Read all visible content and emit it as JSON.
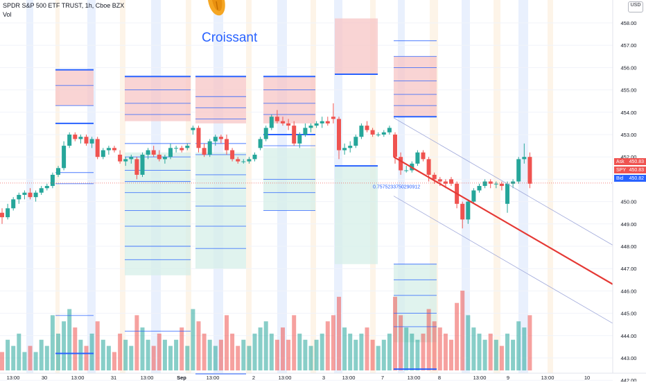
{
  "header": {
    "symbol_line": "SPDR S&P 500 ETF TRUST, 1h, Cboe BZX",
    "volume_label": "Vol",
    "currency_badge": "USD"
  },
  "watermark_text": "Croissant",
  "price_tags": [
    {
      "label": "Ask",
      "value": "450.83",
      "color": "#ef5350"
    },
    {
      "label": "SPY",
      "value": "450.83",
      "color": "#ef5350"
    },
    {
      "label": "Bid",
      "value": "450.82",
      "color": "#2962ff"
    }
  ],
  "annotation_value": "0.7575233750290912",
  "colors": {
    "up": "#26a69a",
    "down": "#ef5350",
    "level_line": "#2962ff",
    "trend_line": "#e53935",
    "grid": "#f0f3fa",
    "session_blue": "#e3ecfd",
    "session_orange": "#fdf1e2"
  },
  "chart_data": {
    "type": "candlestick",
    "title": "SPDR S&P 500 ETF TRUST, 1h, Cboe BZX",
    "y_axis": {
      "ticks": [
        "442.00",
        "443.00",
        "444.00",
        "445.00",
        "446.00",
        "447.00",
        "448.00",
        "449.00",
        "450.00",
        "451.00",
        "452.00",
        "453.00",
        "454.00",
        "455.00",
        "456.00",
        "457.00",
        "458.00"
      ],
      "range": [
        441.3,
        459.2
      ]
    },
    "x_axis": {
      "ticks": [
        "13:00",
        "30",
        "13:00",
        "31",
        "13:00",
        "Sep",
        "13:00",
        "2",
        "13:00",
        "3",
        "13:00",
        "7",
        "13:00",
        "8",
        "13:00",
        "9",
        "13:00",
        "10"
      ]
    },
    "series": [
      {
        "name": "SPY",
        "ohlc": [
          [
            449.5,
            449.7,
            449.0,
            449.3
          ],
          [
            449.3,
            449.9,
            449.2,
            449.7
          ],
          [
            449.7,
            450.2,
            449.6,
            450.1
          ],
          [
            450.1,
            450.4,
            449.9,
            450.3
          ],
          [
            450.3,
            450.5,
            450.1,
            450.4
          ],
          [
            450.4,
            450.6,
            450.1,
            450.2
          ],
          [
            450.2,
            450.5,
            450.0,
            450.4
          ],
          [
            450.4,
            450.7,
            450.3,
            450.6
          ],
          [
            450.6,
            450.8,
            450.5,
            450.7
          ],
          [
            450.7,
            451.3,
            450.6,
            451.2
          ],
          [
            451.2,
            451.6,
            451.1,
            451.5
          ],
          [
            451.5,
            452.7,
            451.4,
            452.5
          ],
          [
            452.5,
            453.1,
            452.4,
            453.0
          ],
          [
            453.0,
            453.1,
            452.7,
            452.8
          ],
          [
            452.8,
            453.0,
            452.6,
            452.9
          ],
          [
            452.9,
            453.0,
            452.5,
            452.6
          ],
          [
            452.6,
            452.9,
            452.4,
            452.8
          ],
          [
            452.8,
            452.9,
            451.9,
            452.0
          ],
          [
            452.0,
            452.4,
            451.9,
            452.3
          ],
          [
            452.3,
            452.5,
            452.1,
            452.4
          ],
          [
            452.4,
            452.5,
            452.2,
            452.3
          ],
          [
            452.1,
            452.3,
            451.7,
            451.8
          ],
          [
            451.8,
            452.0,
            451.6,
            451.9
          ],
          [
            451.9,
            452.1,
            451.7,
            452.0
          ],
          [
            451.9,
            452.0,
            451.0,
            451.2
          ],
          [
            451.2,
            452.2,
            451.1,
            452.1
          ],
          [
            452.1,
            452.4,
            451.9,
            452.3
          ],
          [
            452.3,
            452.5,
            452.0,
            452.1
          ],
          [
            452.1,
            452.3,
            451.8,
            451.9
          ],
          [
            451.9,
            452.1,
            451.7,
            452.0
          ],
          [
            452.0,
            452.6,
            451.9,
            452.4
          ],
          [
            452.4,
            452.5,
            452.2,
            452.4
          ],
          [
            452.4,
            452.5,
            452.2,
            452.3
          ],
          [
            452.4,
            452.6,
            452.3,
            452.5
          ],
          [
            453.2,
            453.4,
            453.0,
            453.3
          ],
          [
            453.3,
            453.4,
            452.2,
            452.4
          ],
          [
            452.4,
            452.6,
            452.0,
            452.1
          ],
          [
            452.1,
            452.8,
            452.0,
            452.7
          ],
          [
            452.7,
            453.0,
            452.5,
            452.9
          ],
          [
            452.9,
            453.0,
            452.6,
            452.8
          ],
          [
            452.8,
            453.0,
            452.1,
            452.3
          ],
          [
            452.3,
            452.4,
            451.8,
            451.9
          ],
          [
            451.9,
            452.0,
            451.7,
            451.8
          ],
          [
            451.8,
            451.9,
            451.7,
            451.8
          ],
          [
            451.8,
            452.0,
            451.7,
            451.9
          ],
          [
            451.9,
            452.2,
            451.8,
            452.1
          ],
          [
            452.4,
            452.9,
            452.3,
            452.8
          ],
          [
            452.8,
            453.4,
            452.7,
            453.3
          ],
          [
            453.3,
            453.9,
            453.2,
            453.8
          ],
          [
            453.8,
            454.1,
            453.5,
            453.6
          ],
          [
            453.6,
            453.8,
            453.4,
            453.5
          ],
          [
            453.5,
            453.7,
            453.2,
            453.4
          ],
          [
            453.4,
            453.6,
            452.5,
            452.6
          ],
          [
            452.6,
            453.1,
            452.4,
            453.0
          ],
          [
            453.0,
            453.5,
            452.9,
            453.3
          ],
          [
            453.3,
            453.5,
            453.1,
            453.4
          ],
          [
            453.4,
            453.6,
            453.3,
            453.5
          ],
          [
            453.5,
            453.8,
            453.3,
            453.6
          ],
          [
            453.6,
            453.8,
            453.4,
            453.5
          ],
          [
            453.8,
            454.4,
            453.5,
            453.7
          ],
          [
            453.7,
            453.8,
            451.9,
            452.3
          ],
          [
            452.3,
            452.6,
            452.1,
            452.4
          ],
          [
            452.4,
            452.7,
            452.2,
            452.5
          ],
          [
            452.5,
            453.0,
            452.4,
            452.9
          ],
          [
            452.9,
            453.5,
            452.8,
            453.4
          ],
          [
            453.4,
            453.6,
            453.1,
            453.2
          ],
          [
            453.2,
            453.3,
            452.9,
            453.0
          ],
          [
            453.0,
            453.1,
            452.9,
            453.0
          ],
          [
            453.0,
            453.2,
            452.9,
            453.1
          ],
          [
            453.1,
            453.4,
            453.0,
            453.3
          ],
          [
            453.0,
            453.1,
            451.7,
            452.0
          ],
          [
            452.0,
            452.2,
            451.2,
            451.4
          ],
          [
            451.4,
            451.6,
            451.3,
            451.4
          ],
          [
            451.4,
            451.8,
            451.3,
            451.7
          ],
          [
            451.7,
            452.3,
            451.6,
            452.2
          ],
          [
            452.2,
            452.3,
            451.8,
            451.9
          ],
          [
            451.9,
            452.0,
            450.9,
            451.2
          ],
          [
            451.2,
            451.3,
            450.8,
            451.0
          ],
          [
            451.0,
            451.1,
            450.7,
            450.9
          ],
          [
            450.9,
            451.0,
            450.6,
            450.8
          ],
          [
            451.0,
            451.1,
            450.7,
            450.8
          ],
          [
            450.8,
            450.9,
            449.7,
            449.9
          ],
          [
            449.9,
            450.0,
            448.8,
            449.2
          ],
          [
            449.2,
            450.1,
            449.0,
            450.0
          ],
          [
            450.0,
            450.6,
            449.9,
            450.5
          ],
          [
            450.5,
            450.8,
            450.4,
            450.7
          ],
          [
            450.7,
            451.0,
            450.6,
            450.9
          ],
          [
            450.9,
            451.0,
            450.6,
            450.8
          ],
          [
            450.8,
            450.9,
            450.6,
            450.8
          ],
          [
            450.8,
            450.9,
            450.5,
            450.7
          ],
          [
            449.9,
            450.9,
            449.5,
            450.8
          ],
          [
            450.8,
            451.0,
            450.6,
            450.9
          ],
          [
            450.9,
            452.0,
            450.8,
            451.9
          ],
          [
            451.9,
            452.6,
            451.7,
            452.0
          ],
          [
            452.0,
            452.2,
            450.6,
            450.8
          ]
        ]
      }
    ],
    "trend_line": {
      "from": [
        452.0,
        "7 09:30"
      ],
      "to": [
        446.3,
        "10 open"
      ]
    },
    "channel_offset": 1.75,
    "annotations": [
      "0.7575233750290912"
    ]
  }
}
